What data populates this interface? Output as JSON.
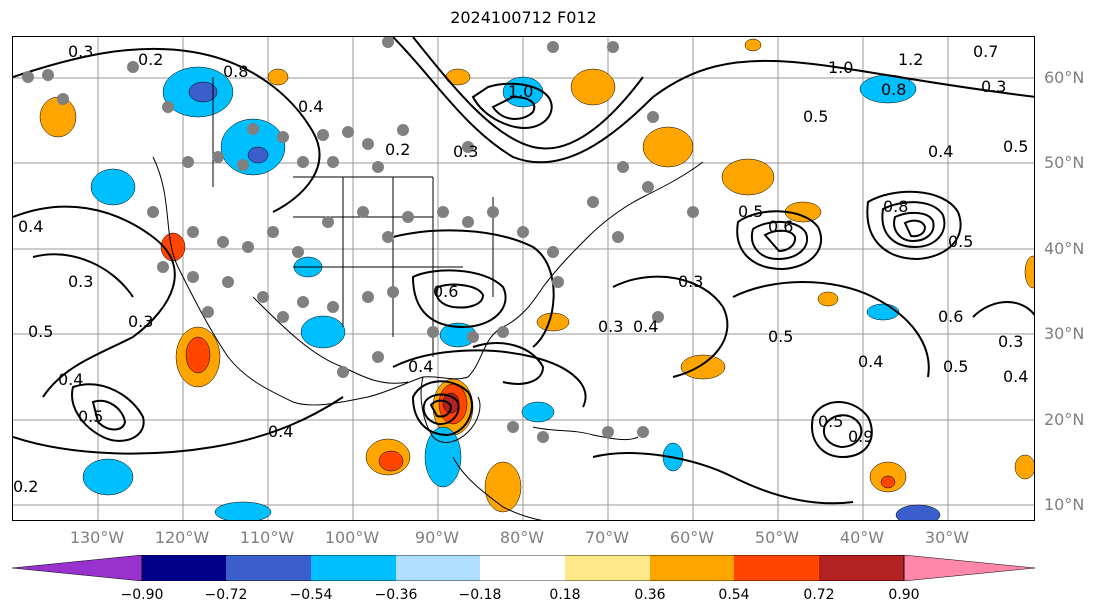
{
  "title": "2024100712 F012",
  "map": {
    "lat_labels": [
      "60°N",
      "50°N",
      "40°N",
      "30°N",
      "20°N",
      "10°N"
    ],
    "lon_labels": [
      "130°W",
      "120°W",
      "110°W",
      "100°W",
      "90°W",
      "80°W",
      "70°W",
      "60°W",
      "50°W",
      "40°W",
      "30°W"
    ],
    "contour_labels": [
      "0.3",
      "0.2",
      "0.8",
      "0.4",
      "0.2",
      "0.3",
      "1.0",
      "1.2",
      "1.0",
      "0.8",
      "0.7",
      "0.5",
      "0.3",
      "0.4",
      "0.5",
      "0.5",
      "0.6",
      "0.8",
      "0.5",
      "0.4",
      "0.3",
      "0.5",
      "0.4",
      "0.3",
      "0.5",
      "0.4",
      "0.3",
      "0.4",
      "0.2",
      "0.4",
      "0.5",
      "0.3",
      "0.6",
      "0.5",
      "0.4",
      "0.3",
      "0.4",
      "0.6",
      "0.5",
      "0.9"
    ],
    "fill_colors": {
      "black_contour": "#000000",
      "station_dot": "#808080"
    }
  },
  "colorbar": {
    "tick_labels": [
      "−0.90",
      "−0.72",
      "−0.54",
      "−0.36",
      "−0.18",
      "0.18",
      "0.36",
      "0.54",
      "0.72",
      "0.90"
    ],
    "colors": [
      "#9932cc",
      "#00008b",
      "#3a5fcd",
      "#00bfff",
      "#b0e0ff",
      "#ffffff",
      "#ffe88a",
      "#ffa500",
      "#ff4500",
      "#b22222",
      "#ff88aa"
    ]
  }
}
